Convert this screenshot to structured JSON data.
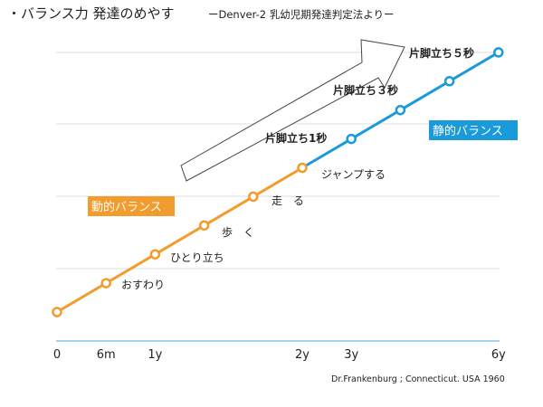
{
  "title": "・バランス力 発達のめやす",
  "subtitle": "ーDenver-2 乳幼児期発達判定法よりー",
  "source": "Dr.Frankenburg ; Connecticut. USA 1960",
  "colors": {
    "dynamic": "#f39c2e",
    "static": "#1a9ad9",
    "grid": "#dddddd",
    "axis": "#4aa8e0"
  },
  "chart_data": {
    "type": "line",
    "x_ticks": [
      "0",
      "6m",
      "1y",
      "2y",
      "3y",
      "6y"
    ],
    "grid": true,
    "series": [
      {
        "name": "動的バランス",
        "color": "#f39c2e",
        "points": [
          {
            "step": 0,
            "label": ""
          },
          {
            "step": 1,
            "label": "おすわり"
          },
          {
            "step": 2,
            "label": "ひとり立ち"
          },
          {
            "step": 3,
            "label": "歩　く"
          },
          {
            "step": 4,
            "label": "走　る"
          },
          {
            "step": 5,
            "label": "ジャンプする"
          }
        ]
      },
      {
        "name": "静的バランス",
        "color": "#1a9ad9",
        "points": [
          {
            "step": 5,
            "label": ""
          },
          {
            "step": 6,
            "label": "片脚立ち1秒"
          },
          {
            "step": 7,
            "label": "片脚立ち３秒"
          },
          {
            "step": 8,
            "label": ""
          },
          {
            "step": 9,
            "label": "片脚立ち５秒"
          }
        ]
      }
    ]
  }
}
